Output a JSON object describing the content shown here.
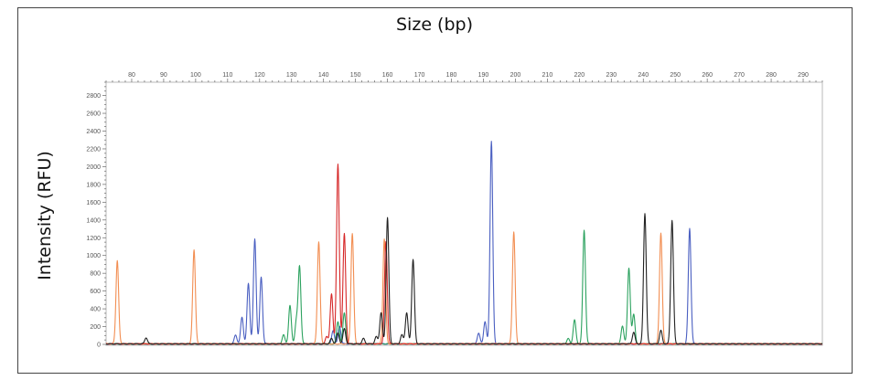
{
  "chart_data": {
    "type": "line",
    "xlabel": "Size (bp)",
    "ylabel": "Intensity (RFU)",
    "xlim": [
      72,
      296
    ],
    "ylim": [
      0,
      2950
    ],
    "x_ticks": [
      80,
      90,
      100,
      110,
      120,
      130,
      140,
      150,
      160,
      170,
      180,
      190,
      200,
      210,
      220,
      230,
      240,
      250,
      260,
      270,
      280,
      290
    ],
    "y_ticks": [
      0,
      200,
      400,
      600,
      800,
      1000,
      1200,
      1400,
      1600,
      1800,
      2000,
      2200,
      2400,
      2600,
      2800
    ],
    "grid": false,
    "series": [
      {
        "color": "#4a5fc1",
        "peaks": [
          [
            112.5,
            100
          ],
          [
            114.5,
            300
          ],
          [
            116.5,
            680
          ],
          [
            118.5,
            1180
          ],
          [
            120.5,
            750
          ],
          [
            143,
            150
          ],
          [
            145,
            200
          ],
          [
            188.5,
            120
          ],
          [
            190.5,
            250
          ],
          [
            192.5,
            2280
          ],
          [
            254.5,
            1300
          ]
        ]
      },
      {
        "color": "#2ca25f",
        "peaks": [
          [
            127.5,
            100
          ],
          [
            129.5,
            430
          ],
          [
            131.5,
            250
          ],
          [
            132.5,
            870
          ],
          [
            144.5,
            250
          ],
          [
            146.5,
            350
          ],
          [
            216.5,
            60
          ],
          [
            218.5,
            270
          ],
          [
            221.5,
            1280
          ],
          [
            233.5,
            200
          ],
          [
            235.5,
            850
          ],
          [
            237,
            330
          ]
        ]
      },
      {
        "color": "#f28e52",
        "peaks": [
          [
            75.5,
            940
          ],
          [
            99.5,
            1060
          ],
          [
            138.5,
            1150
          ],
          [
            149,
            1240
          ],
          [
            159,
            1180
          ],
          [
            199.5,
            1260
          ],
          [
            245.5,
            1250
          ]
        ]
      },
      {
        "color": "#d62728",
        "peaks": [
          [
            141,
            80
          ],
          [
            142.5,
            560
          ],
          [
            144.5,
            2020
          ],
          [
            146.5,
            1240
          ],
          [
            159.5,
            1150
          ]
        ]
      },
      {
        "color": "#222222",
        "peaks": [
          [
            84.5,
            70
          ],
          [
            142.5,
            60
          ],
          [
            144.5,
            120
          ],
          [
            146.5,
            170
          ],
          [
            152.5,
            60
          ],
          [
            156.5,
            80
          ],
          [
            158,
            350
          ],
          [
            160,
            1420
          ],
          [
            164.5,
            100
          ],
          [
            166,
            350
          ],
          [
            168,
            950
          ],
          [
            237,
            130
          ],
          [
            240.5,
            1470
          ],
          [
            245.5,
            150
          ],
          [
            249,
            1390
          ]
        ]
      }
    ]
  }
}
